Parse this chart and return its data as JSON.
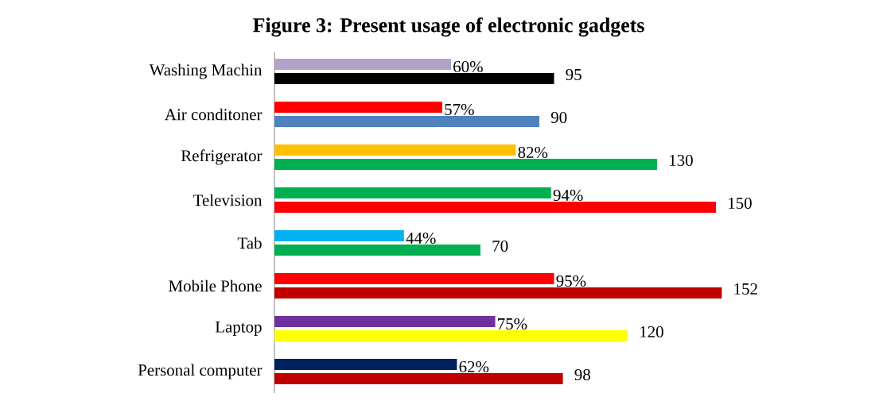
{
  "chart_data": {
    "type": "bar",
    "orientation": "horizontal",
    "title": "Figure 3: Present usage of  electronic gadgets",
    "categories": [
      "Washing Machin",
      "Air conditoner",
      "Refrigerator",
      "Television",
      "Tab",
      "Mobile Phone",
      "Laptop",
      "Personal computer"
    ],
    "tick_labels": "y",
    "data_labels": true,
    "series": [
      {
        "values": [
          60,
          57,
          82,
          94,
          44,
          95,
          75,
          62
        ],
        "value_labels": [
          "60%",
          "57%",
          "82%",
          "94%",
          "44%",
          "95%",
          "75%",
          "62%"
        ],
        "colors": [
          "#b3a2c7",
          "#ff0000",
          "#ffc000",
          "#00b050",
          "#00b0f0",
          "#ff0000",
          "#7030a0",
          "#002060"
        ]
      },
      {
        "values": [
          95,
          90,
          130,
          150,
          70,
          152,
          120,
          98
        ],
        "colors": [
          "#000000",
          "#4f81bd",
          "#00b050",
          "#ff0000",
          "#00b050",
          "#c00000",
          "#ffff00",
          "#c00000"
        ]
      }
    ]
  }
}
